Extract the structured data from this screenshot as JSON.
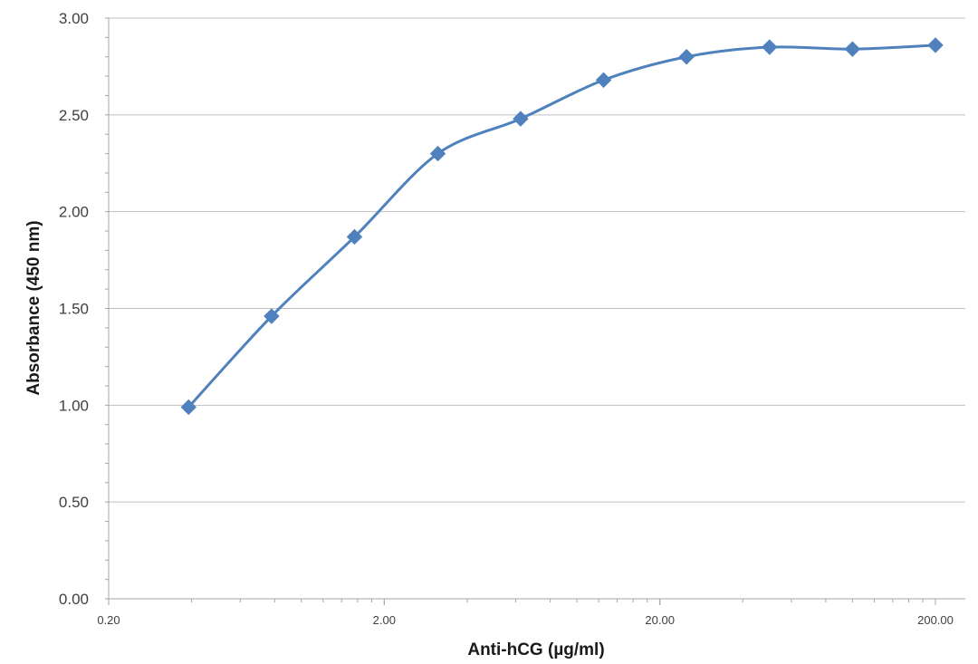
{
  "chart_data": {
    "type": "line",
    "xlabel": "Anti-hCG (µg/ml)",
    "ylabel": "Absorbance (450 nm)",
    "x_scale": "log",
    "xlim": [
      0.2,
      200
    ],
    "ylim": [
      0,
      3
    ],
    "x_ticks": [
      "0.20",
      "2.00",
      "20.00",
      "200.00"
    ],
    "y_ticks": [
      "0.00",
      "0.50",
      "1.00",
      "1.50",
      "2.00",
      "2.50",
      "3.00"
    ],
    "grid": "horizontal",
    "legend": "none",
    "series": [
      {
        "color": "#4f81bd",
        "marker": "diamond",
        "x": [
          0.39,
          0.78,
          1.56,
          3.13,
          6.25,
          12.5,
          25,
          50,
          100,
          200
        ],
        "y": [
          0.99,
          1.46,
          1.87,
          2.3,
          2.48,
          2.68,
          2.8,
          2.85,
          2.84,
          2.86
        ]
      }
    ]
  }
}
